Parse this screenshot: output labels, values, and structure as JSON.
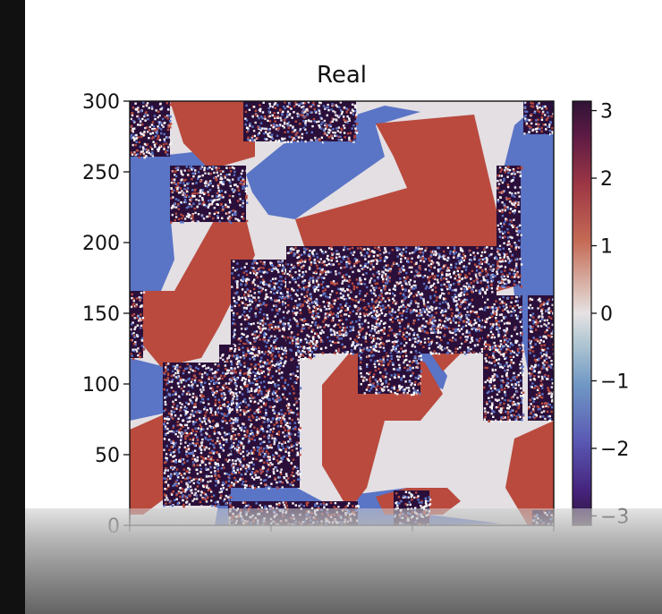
{
  "chart_data": {
    "type": "heatmap",
    "title": "Real",
    "xlabel": "",
    "ylabel": "",
    "xlim": [
      0,
      300
    ],
    "ylim": [
      0,
      300
    ],
    "x_ticks": [
      0,
      100,
      200,
      300
    ],
    "y_ticks": [
      0,
      50,
      100,
      150,
      200,
      250,
      300
    ],
    "colorbar": {
      "colormap": "twilight_shifted",
      "range": [
        -3.14,
        3.14
      ],
      "ticks": [
        3,
        2,
        1,
        0,
        -1,
        -2,
        -3
      ]
    },
    "grid": false,
    "phase_colors": {
      "red": "#b94a3d",
      "blue": "#5a74c6",
      "light": "#e3dfe3",
      "noise": [
        "#2a0f3a",
        "#ffffff",
        "#b94a3d",
        "#5a74c6",
        "#e9e2e6"
      ]
    }
  }
}
